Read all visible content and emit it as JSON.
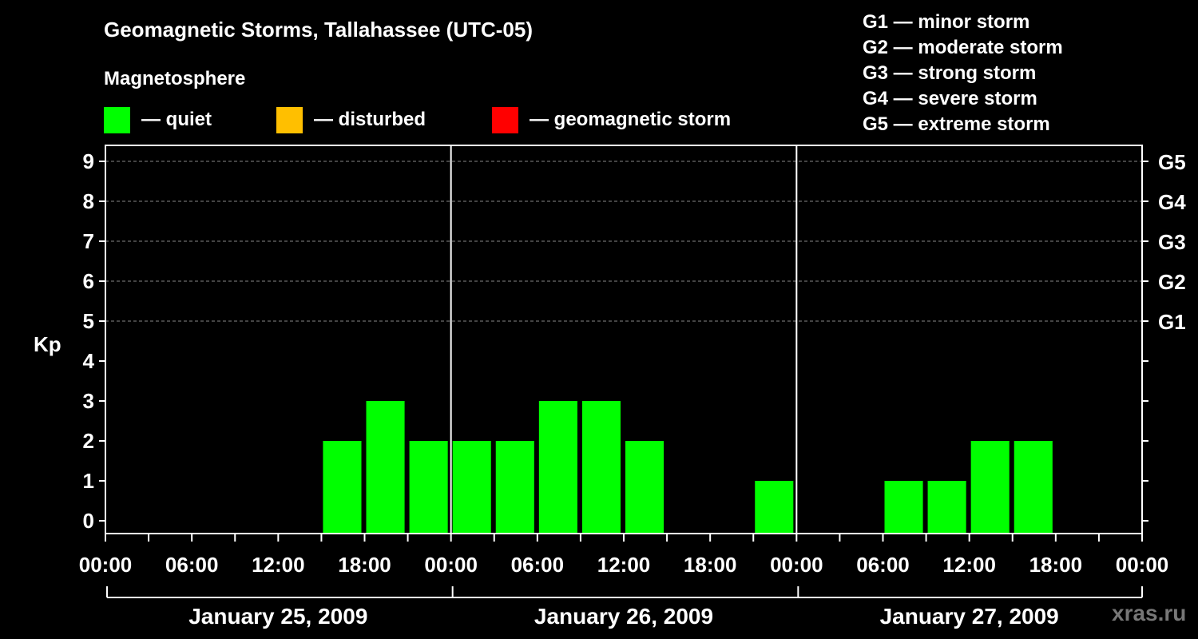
{
  "chart_data": {
    "type": "bar",
    "title": "Geomagnetic Storms, Tallahassee (UTC-05)",
    "ylabel": "Kp",
    "ylim": [
      0,
      9
    ],
    "y_ticks": [
      0,
      1,
      2,
      3,
      4,
      5,
      6,
      7,
      8,
      9
    ],
    "right_axis_labels": [
      {
        "kp": 5,
        "label": "G1"
      },
      {
        "kp": 6,
        "label": "G2"
      },
      {
        "kp": 7,
        "label": "G3"
      },
      {
        "kp": 8,
        "label": "G4"
      },
      {
        "kp": 9,
        "label": "G5"
      }
    ],
    "x_tick_labels": [
      "00:00",
      "06:00",
      "12:00",
      "18:00",
      "00:00",
      "06:00",
      "12:00",
      "18:00",
      "00:00",
      "06:00",
      "12:00",
      "18:00",
      "00:00"
    ],
    "day_labels": [
      "January 25, 2009",
      "January 26, 2009",
      "January 27, 2009"
    ],
    "interval_hours": 3,
    "categories": [
      "Jan 25 00:00",
      "Jan 25 03:00",
      "Jan 25 06:00",
      "Jan 25 09:00",
      "Jan 25 12:00",
      "Jan 25 15:00",
      "Jan 25 18:00",
      "Jan 25 21:00",
      "Jan 26 00:00",
      "Jan 26 03:00",
      "Jan 26 06:00",
      "Jan 26 09:00",
      "Jan 26 12:00",
      "Jan 26 15:00",
      "Jan 26 18:00",
      "Jan 26 21:00",
      "Jan 27 00:00",
      "Jan 27 03:00",
      "Jan 27 06:00",
      "Jan 27 09:00",
      "Jan 27 12:00",
      "Jan 27 15:00",
      "Jan 27 18:00",
      "Jan 27 21:00"
    ],
    "values": [
      null,
      null,
      null,
      null,
      null,
      2,
      3,
      2,
      2,
      2,
      3,
      3,
      2,
      null,
      null,
      1,
      null,
      null,
      1,
      1,
      2,
      2,
      null,
      null
    ],
    "grid": "horizontal-dashed",
    "colors": {
      "quiet": "#00ff00",
      "disturbed": "#ffbf00",
      "storm": "#ff0000"
    }
  },
  "legend": {
    "heading": "Magnetosphere",
    "items": [
      {
        "label": "— quiet",
        "color": "#00ff00"
      },
      {
        "label": "— disturbed",
        "color": "#ffbf00"
      },
      {
        "label": "— geomagnetic storm",
        "color": "#ff0000"
      }
    ]
  },
  "storm_scale": [
    "G1 — minor storm",
    "G2 — moderate storm",
    "G3 — strong storm",
    "G4 — severe storm",
    "G5 — extreme storm"
  ],
  "watermark": "xras.ru"
}
